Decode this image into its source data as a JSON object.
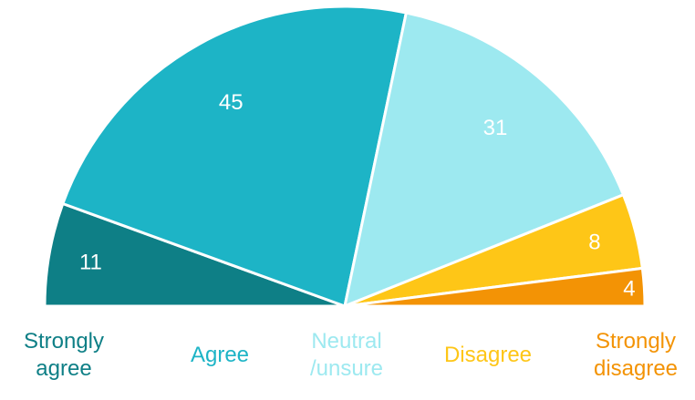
{
  "chart_data": {
    "type": "pie",
    "variant": "half-donut (semicircle)",
    "title": "",
    "series": [
      {
        "name": "Strongly agree",
        "label_lines": [
          "Strongly",
          "agree"
        ],
        "value": 11,
        "color": "#0e7f86"
      },
      {
        "name": "Agree",
        "label_lines": [
          "Agree"
        ],
        "value": 45,
        "color": "#1db4c6"
      },
      {
        "name": "Neutral /unsure",
        "label_lines": [
          "Neutral",
          "/unsure"
        ],
        "value": 31,
        "color": "#9de9f0"
      },
      {
        "name": "Disagree",
        "label_lines": [
          "Disagree"
        ],
        "value": 8,
        "color": "#fec617"
      },
      {
        "name": "Strongly disagree",
        "label_lines": [
          "Strongly",
          "disagree"
        ],
        "value": 4,
        "color": "#f39305"
      }
    ],
    "data_label_color": "#ffffff",
    "legend_position": "bottom"
  }
}
